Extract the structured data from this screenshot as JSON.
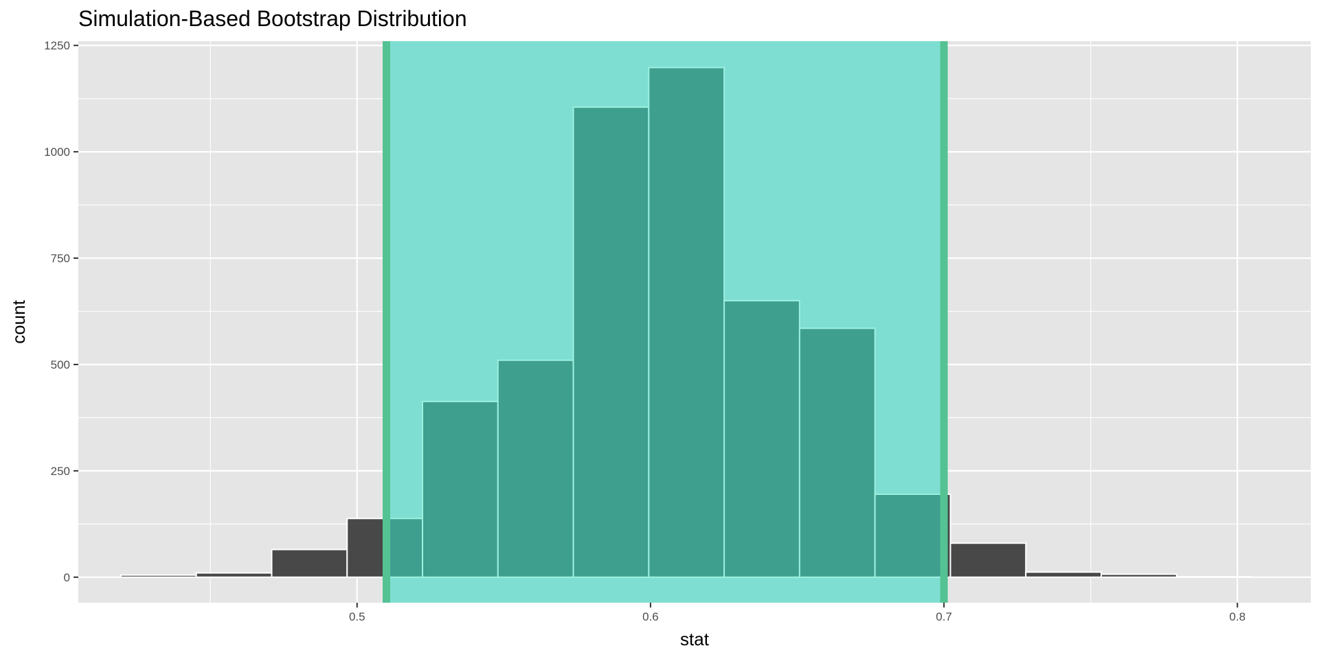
{
  "chart_data": {
    "type": "bar",
    "title": "Simulation-Based Bootstrap Distribution",
    "xlabel": "stat",
    "ylabel": "count",
    "xlim": [
      0.405,
      0.825
    ],
    "ylim": [
      -60,
      1260
    ],
    "xticks": [
      0.5,
      0.6,
      0.7,
      0.8
    ],
    "yticks": [
      0,
      250,
      500,
      750,
      1000,
      1250
    ],
    "bin_width": 0.0257,
    "bins": [
      {
        "x0": 0.4195,
        "count": 5
      },
      {
        "x0": 0.4452,
        "count": 10
      },
      {
        "x0": 0.4709,
        "count": 65
      },
      {
        "x0": 0.4966,
        "count": 138
      },
      {
        "x0": 0.5223,
        "count": 413
      },
      {
        "x0": 0.548,
        "count": 510
      },
      {
        "x0": 0.5737,
        "count": 1105
      },
      {
        "x0": 0.5994,
        "count": 1198
      },
      {
        "x0": 0.6251,
        "count": 650
      },
      {
        "x0": 0.6508,
        "count": 585
      },
      {
        "x0": 0.6765,
        "count": 195
      },
      {
        "x0": 0.7022,
        "count": 80
      },
      {
        "x0": 0.7279,
        "count": 12
      },
      {
        "x0": 0.7536,
        "count": 7
      },
      {
        "x0": 0.7793,
        "count": 1
      }
    ],
    "ci": {
      "lower": 0.51,
      "upper": 0.7
    },
    "grid": true,
    "legend": "none"
  },
  "colors": {
    "panel": "#e5e5e5",
    "grid": "#ffffff",
    "bar_fill": "#484848",
    "bar_outline": "#ffffff",
    "ci_fill": "#7fded2",
    "ci_line": "#55c294",
    "bar_in_ci": "#3f9f8f",
    "bar_in_ci_outline": "#9cf0df"
  }
}
